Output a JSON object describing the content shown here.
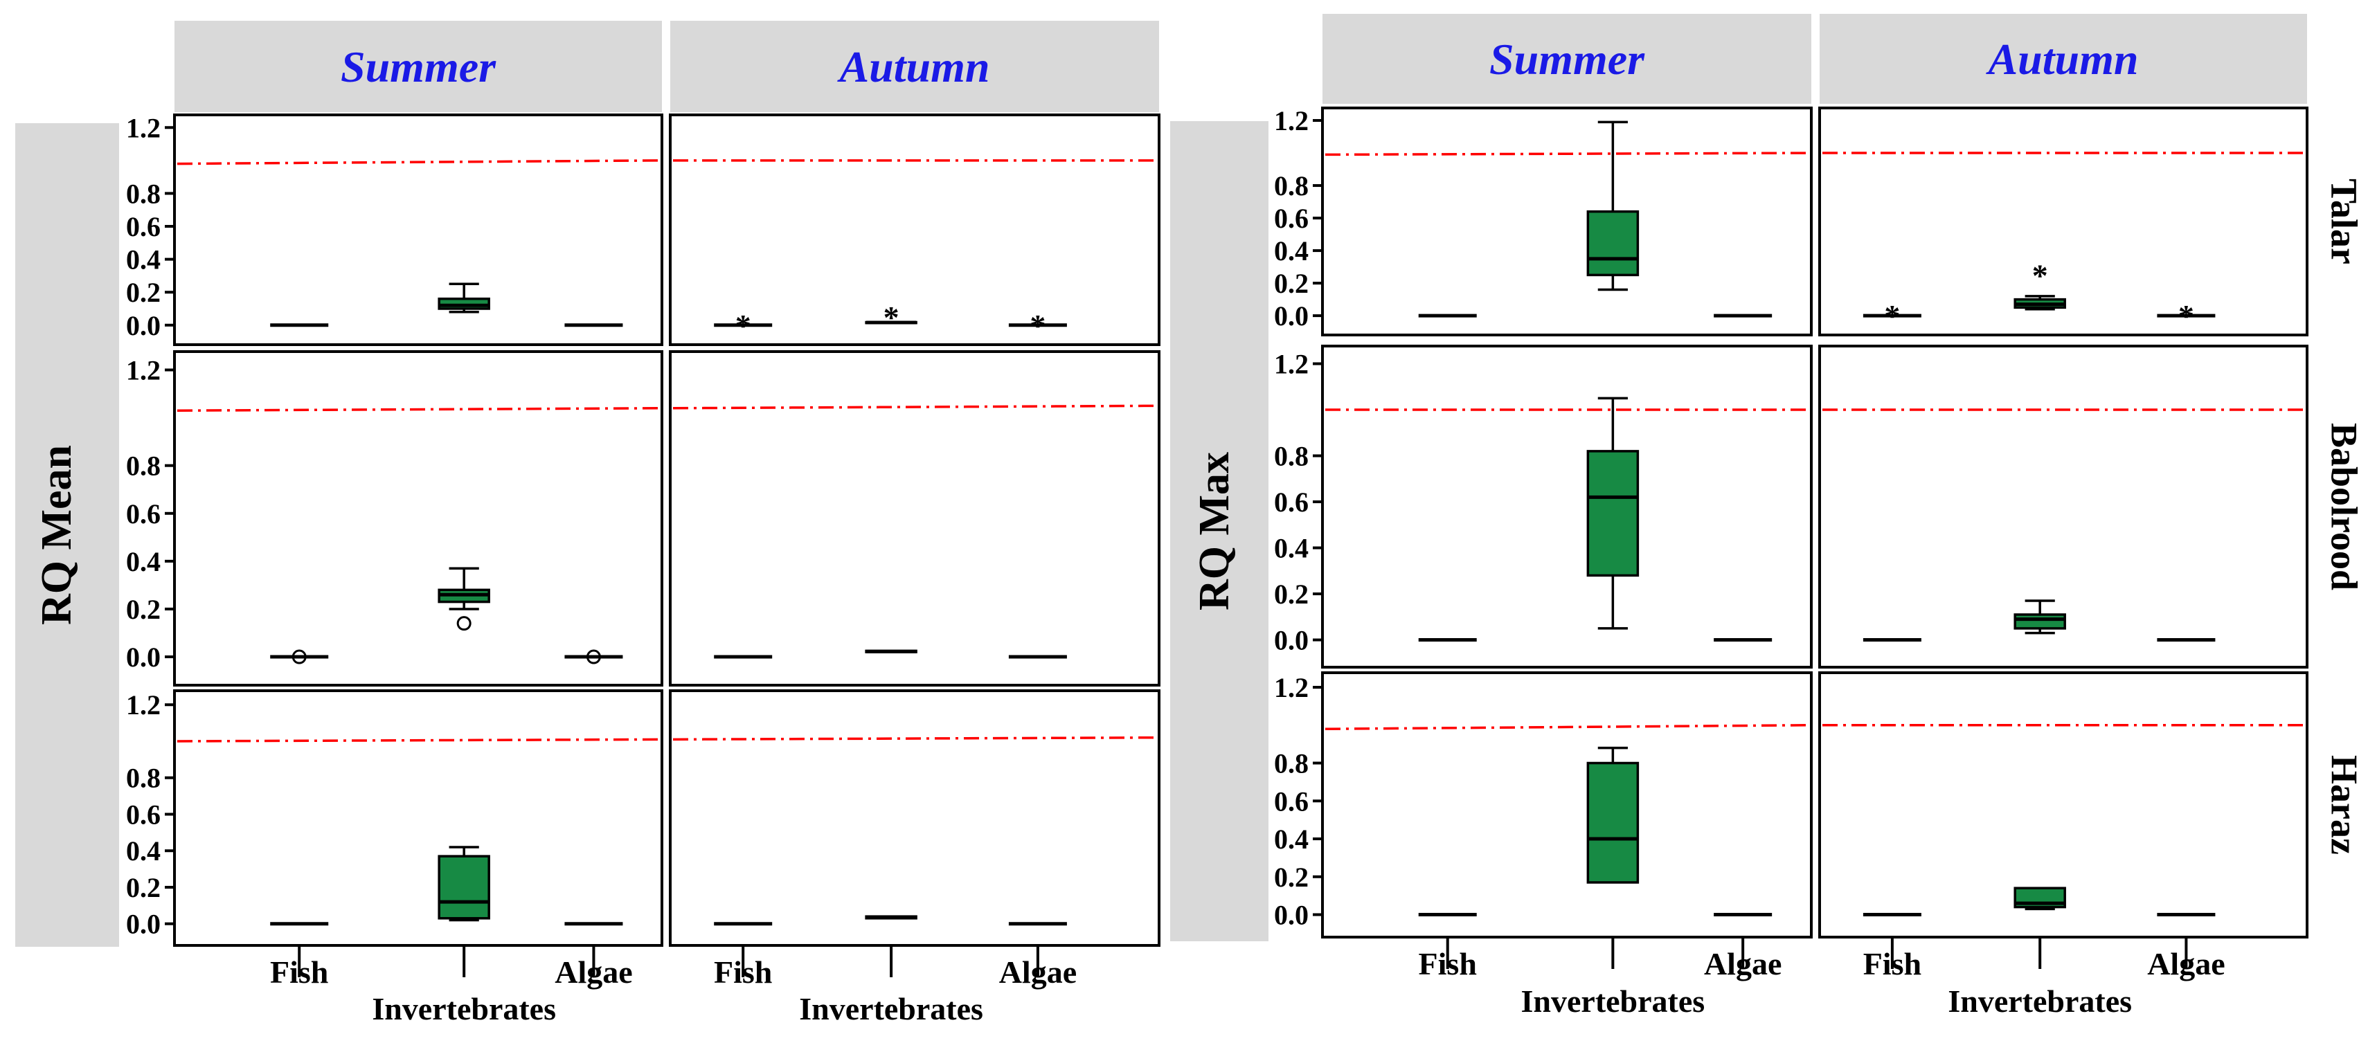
{
  "colors": {
    "box_fill": "#178A44",
    "ref_line": "#FF0000",
    "strip_bg": "#D9D9D9",
    "strip_text": "#1A1AE6",
    "ink": "#000000"
  },
  "chart_data": [
    {
      "type": "boxplot",
      "ylabel": "RQ Mean",
      "columns": [
        "Summer",
        "Autumn"
      ],
      "rows": [
        "Talar",
        "Babolrood",
        "Haraz"
      ],
      "categories": [
        "Fish",
        "Invertebrates",
        "Algae"
      ],
      "yticks": [
        0.0,
        0.2,
        0.4,
        0.6,
        0.8,
        1.2
      ],
      "ytick_labels": [
        "0.0",
        "0.2",
        "0.4",
        "0.6",
        "0.8",
        "1.2"
      ],
      "reference_line": 1.0,
      "panels": [
        {
          "row": 0,
          "col": 0,
          "ref_start": 0.98,
          "ref_end": 1.0,
          "boxes": [
            {
              "category": "Fish",
              "min": 0.0,
              "q1": 0.0,
              "median": 0.0,
              "q3": 0.0,
              "max": 0.0,
              "outliers": []
            },
            {
              "category": "Invertebrates",
              "min": 0.08,
              "q1": 0.1,
              "median": 0.12,
              "q3": 0.16,
              "max": 0.25,
              "outliers": []
            },
            {
              "category": "Algae",
              "min": 0.0,
              "q1": 0.0,
              "median": 0.0,
              "q3": 0.0,
              "max": 0.0,
              "outliers": []
            }
          ]
        },
        {
          "row": 0,
          "col": 1,
          "ref_start": 1.0,
          "ref_end": 1.0,
          "boxes": [
            {
              "category": "Fish",
              "min": 0.0,
              "q1": 0.0,
              "median": 0.0,
              "q3": 0.0,
              "max": 0.0,
              "outliers": [],
              "extremes": [
                0.0
              ]
            },
            {
              "category": "Invertebrates",
              "min": 0.013,
              "q1": 0.013,
              "median": 0.016,
              "q3": 0.018,
              "max": 0.018,
              "outliers": [],
              "extremes": [
                0.05
              ]
            },
            {
              "category": "Algae",
              "min": 0.0,
              "q1": 0.0,
              "median": 0.0,
              "q3": 0.0,
              "max": 0.0,
              "outliers": [],
              "extremes": [
                0.0
              ]
            }
          ]
        },
        {
          "row": 1,
          "col": 0,
          "ref_start": 1.03,
          "ref_end": 1.04,
          "boxes": [
            {
              "category": "Fish",
              "min": 0.0,
              "q1": 0.0,
              "median": 0.0,
              "q3": 0.0,
              "max": 0.0,
              "outliers": [
                0.0
              ]
            },
            {
              "category": "Invertebrates",
              "min": 0.2,
              "q1": 0.23,
              "median": 0.26,
              "q3": 0.28,
              "max": 0.37,
              "outliers": [
                0.14
              ]
            },
            {
              "category": "Algae",
              "min": 0.0,
              "q1": 0.0,
              "median": 0.0,
              "q3": 0.0,
              "max": 0.0,
              "outliers": [
                0.0
              ]
            }
          ]
        },
        {
          "row": 1,
          "col": 1,
          "ref_start": 1.04,
          "ref_end": 1.05,
          "boxes": [
            {
              "category": "Fish",
              "min": 0.0,
              "q1": 0.0,
              "median": 0.0,
              "q3": 0.0,
              "max": 0.0,
              "outliers": []
            },
            {
              "category": "Invertebrates",
              "min": 0.02,
              "q1": 0.02,
              "median": 0.022,
              "q3": 0.025,
              "max": 0.025,
              "outliers": []
            },
            {
              "category": "Algae",
              "min": 0.0,
              "q1": 0.0,
              "median": 0.0,
              "q3": 0.0,
              "max": 0.0,
              "outliers": []
            }
          ]
        },
        {
          "row": 2,
          "col": 0,
          "ref_start": 1.0,
          "ref_end": 1.01,
          "boxes": [
            {
              "category": "Fish",
              "min": 0.0,
              "q1": 0.0,
              "median": 0.0,
              "q3": 0.0,
              "max": 0.0,
              "outliers": []
            },
            {
              "category": "Invertebrates",
              "min": 0.02,
              "q1": 0.03,
              "median": 0.12,
              "q3": 0.37,
              "max": 0.42,
              "outliers": []
            },
            {
              "category": "Algae",
              "min": 0.0,
              "q1": 0.0,
              "median": 0.0,
              "q3": 0.0,
              "max": 0.0,
              "outliers": []
            }
          ]
        },
        {
          "row": 2,
          "col": 1,
          "ref_start": 1.01,
          "ref_end": 1.02,
          "boxes": [
            {
              "category": "Fish",
              "min": 0.0,
              "q1": 0.0,
              "median": 0.0,
              "q3": 0.0,
              "max": 0.0,
              "outliers": []
            },
            {
              "category": "Invertebrates",
              "min": 0.03,
              "q1": 0.03,
              "median": 0.035,
              "q3": 0.04,
              "max": 0.04,
              "outliers": []
            },
            {
              "category": "Algae",
              "min": 0.0,
              "q1": 0.0,
              "median": 0.0,
              "q3": 0.0,
              "max": 0.0,
              "outliers": []
            }
          ]
        }
      ]
    },
    {
      "type": "boxplot",
      "ylabel": "RQ Max",
      "columns": [
        "Summer",
        "Autumn"
      ],
      "rows": [
        "Talar",
        "Babolrood",
        "Haraz"
      ],
      "categories": [
        "Fish",
        "Invertebrates",
        "Algae"
      ],
      "yticks": [
        0.0,
        0.2,
        0.4,
        0.6,
        0.8,
        1.2
      ],
      "ytick_labels": [
        "0.0",
        "0.2",
        "0.4",
        "0.6",
        "0.8",
        "1.2"
      ],
      "reference_line": 1.0,
      "panels": [
        {
          "row": 0,
          "col": 0,
          "ref_start": 0.99,
          "ref_end": 1.0,
          "boxes": [
            {
              "category": "Fish",
              "min": 0.0,
              "q1": 0.0,
              "median": 0.0,
              "q3": 0.0,
              "max": 0.0,
              "outliers": []
            },
            {
              "category": "Invertebrates",
              "min": 0.16,
              "q1": 0.25,
              "median": 0.35,
              "q3": 0.64,
              "max": 1.19,
              "outliers": []
            },
            {
              "category": "Algae",
              "min": 0.0,
              "q1": 0.0,
              "median": 0.0,
              "q3": 0.0,
              "max": 0.0,
              "outliers": []
            }
          ]
        },
        {
          "row": 0,
          "col": 1,
          "ref_start": 1.0,
          "ref_end": 1.0,
          "boxes": [
            {
              "category": "Fish",
              "min": 0.0,
              "q1": 0.0,
              "median": 0.0,
              "q3": 0.0,
              "max": 0.0,
              "outliers": [],
              "extremes": [
                0.0
              ]
            },
            {
              "category": "Invertebrates",
              "min": 0.04,
              "q1": 0.05,
              "median": 0.07,
              "q3": 0.1,
              "max": 0.12,
              "outliers": [],
              "extremes": [
                0.25
              ]
            },
            {
              "category": "Algae",
              "min": 0.0,
              "q1": 0.0,
              "median": 0.0,
              "q3": 0.0,
              "max": 0.0,
              "outliers": [],
              "extremes": [
                0.0
              ]
            }
          ]
        },
        {
          "row": 1,
          "col": 0,
          "ref_start": 1.0,
          "ref_end": 1.0,
          "boxes": [
            {
              "category": "Fish",
              "min": 0.0,
              "q1": 0.0,
              "median": 0.0,
              "q3": 0.0,
              "max": 0.0,
              "outliers": []
            },
            {
              "category": "Invertebrates",
              "min": 0.05,
              "q1": 0.28,
              "median": 0.62,
              "q3": 0.82,
              "max": 1.05,
              "outliers": []
            },
            {
              "category": "Algae",
              "min": 0.0,
              "q1": 0.0,
              "median": 0.0,
              "q3": 0.0,
              "max": 0.0,
              "outliers": []
            }
          ]
        },
        {
          "row": 1,
          "col": 1,
          "ref_start": 1.0,
          "ref_end": 1.0,
          "boxes": [
            {
              "category": "Fish",
              "min": 0.0,
              "q1": 0.0,
              "median": 0.0,
              "q3": 0.0,
              "max": 0.0,
              "outliers": []
            },
            {
              "category": "Invertebrates",
              "min": 0.03,
              "q1": 0.05,
              "median": 0.09,
              "q3": 0.11,
              "max": 0.17,
              "outliers": []
            },
            {
              "category": "Algae",
              "min": 0.0,
              "q1": 0.0,
              "median": 0.0,
              "q3": 0.0,
              "max": 0.0,
              "outliers": []
            }
          ]
        },
        {
          "row": 2,
          "col": 0,
          "ref_start": 0.98,
          "ref_end": 1.0,
          "boxes": [
            {
              "category": "Fish",
              "min": 0.0,
              "q1": 0.0,
              "median": 0.0,
              "q3": 0.0,
              "max": 0.0,
              "outliers": []
            },
            {
              "category": "Invertebrates",
              "min": 0.17,
              "q1": 0.17,
              "median": 0.4,
              "q3": 0.8,
              "max": 0.88,
              "outliers": []
            },
            {
              "category": "Algae",
              "min": 0.0,
              "q1": 0.0,
              "median": 0.0,
              "q3": 0.0,
              "max": 0.0,
              "outliers": []
            }
          ]
        },
        {
          "row": 2,
          "col": 1,
          "ref_start": 1.0,
          "ref_end": 1.0,
          "boxes": [
            {
              "category": "Fish",
              "min": 0.0,
              "q1": 0.0,
              "median": 0.0,
              "q3": 0.0,
              "max": 0.0,
              "outliers": []
            },
            {
              "category": "Invertebrates",
              "min": 0.03,
              "q1": 0.04,
              "median": 0.06,
              "q3": 0.14,
              "max": 0.14,
              "outliers": []
            },
            {
              "category": "Algae",
              "min": 0.0,
              "q1": 0.0,
              "median": 0.0,
              "q3": 0.0,
              "max": 0.0,
              "outliers": []
            }
          ]
        }
      ]
    }
  ]
}
